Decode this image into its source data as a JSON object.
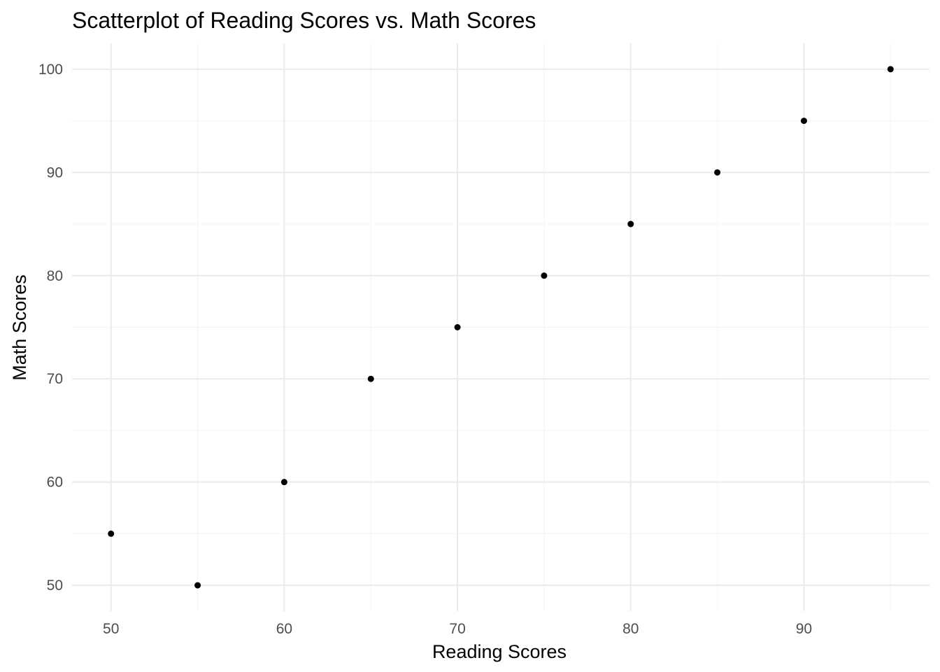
{
  "chart_data": {
    "type": "scatter",
    "title": "Scatterplot of Reading Scores vs. Math Scores",
    "xlabel": "Reading Scores",
    "ylabel": "Math Scores",
    "xlim": [
      47.75,
      97.25
    ],
    "ylim": [
      47.5,
      102.5
    ],
    "x_ticks": [
      50,
      60,
      70,
      80,
      90
    ],
    "y_ticks": [
      50,
      60,
      70,
      80,
      90,
      100
    ],
    "x_minor": [
      55,
      65,
      75,
      85,
      95
    ],
    "y_minor": [
      55,
      65,
      75,
      85,
      95
    ],
    "grid": true,
    "legend": "none",
    "point_color": "#000000",
    "points": [
      {
        "x": 50,
        "y": 55
      },
      {
        "x": 55,
        "y": 50
      },
      {
        "x": 60,
        "y": 60
      },
      {
        "x": 65,
        "y": 70
      },
      {
        "x": 70,
        "y": 75
      },
      {
        "x": 75,
        "y": 80
      },
      {
        "x": 80,
        "y": 85
      },
      {
        "x": 85,
        "y": 90
      },
      {
        "x": 90,
        "y": 95
      },
      {
        "x": 95,
        "y": 100
      }
    ]
  }
}
